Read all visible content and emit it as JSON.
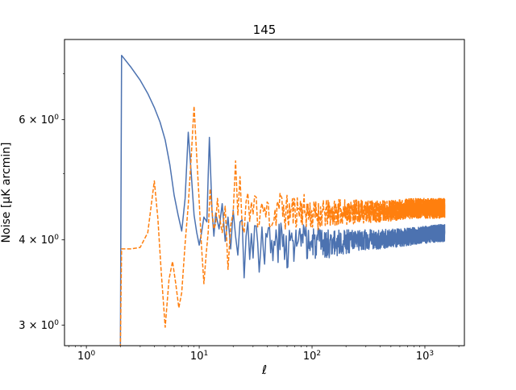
{
  "title": "145",
  "axes": {
    "xlabel": "ℓ",
    "ylabel": "Noise [μK arcmin]"
  },
  "chart_data": {
    "type": "line",
    "x_scale": "log",
    "y_scale": "log",
    "x_range": [
      0.64,
      2240
    ],
    "y_range": [
      2.8,
      7.86
    ],
    "grid": false,
    "legend": "none",
    "x_ticks": {
      "major": [
        {
          "v": 1,
          "exp": "0"
        },
        {
          "v": 10,
          "exp": "1"
        },
        {
          "v": 100,
          "exp": "2"
        },
        {
          "v": 1000,
          "exp": "3"
        }
      ],
      "minor": [
        0.7,
        0.8,
        0.9,
        2,
        3,
        4,
        5,
        6,
        7,
        8,
        9,
        20,
        30,
        40,
        50,
        60,
        70,
        80,
        90,
        200,
        300,
        400,
        500,
        600,
        700,
        800,
        900,
        2000
      ]
    },
    "y_ticks": {
      "labeled": [
        {
          "v": 3,
          "coeff": "3",
          "exp": "0"
        },
        {
          "v": 4,
          "coeff": "4",
          "exp": "0"
        },
        {
          "v": 6,
          "coeff": "6",
          "exp": "0"
        }
      ],
      "minor": [
        5,
        7
      ]
    },
    "series": [
      {
        "id": "series-solid",
        "color": "#4c72b0",
        "style": "solid",
        "seed": 3,
        "anchors": [
          [
            2,
            2.78
          ],
          [
            2.05,
            7.45
          ],
          [
            2.5,
            7.15
          ],
          [
            3,
            6.85
          ],
          [
            3.5,
            6.55
          ],
          [
            4,
            6.25
          ],
          [
            4.5,
            5.95
          ],
          [
            5,
            5.6
          ],
          [
            5.5,
            5.15
          ],
          [
            6,
            4.65
          ],
          [
            6.5,
            4.35
          ],
          [
            7,
            4.12
          ],
          [
            7.5,
            4.6
          ],
          [
            8,
            5.75
          ],
          [
            8.5,
            5.0
          ],
          [
            9,
            4.35
          ],
          [
            9.5,
            4.1
          ],
          [
            10,
            3.93
          ],
          [
            10.5,
            4.1
          ],
          [
            11,
            4.32
          ],
          [
            11.7,
            4.25
          ],
          [
            12.3,
            5.65
          ],
          [
            13,
            4.4
          ],
          [
            13.5,
            4.05
          ],
          [
            14,
            4.38
          ],
          [
            15,
            4.15
          ],
          [
            16,
            4.52
          ],
          [
            17,
            3.98
          ],
          [
            18,
            4.32
          ],
          [
            19,
            3.88
          ],
          [
            20,
            4.42
          ],
          [
            21,
            4.05
          ],
          [
            22,
            3.8
          ],
          [
            23,
            4.25
          ],
          [
            24,
            4.28
          ],
          [
            25,
            3.52
          ],
          [
            26,
            4.05
          ],
          [
            27,
            4.22
          ],
          [
            28,
            3.85
          ],
          [
            29,
            4.1
          ],
          [
            30,
            3.95
          ],
          [
            32,
            4.2
          ],
          [
            34,
            3.75
          ],
          [
            36,
            4.15
          ],
          [
            38,
            3.9
          ],
          [
            40,
            4.05
          ],
          [
            45,
            3.85
          ],
          [
            50,
            4.0
          ],
          [
            60,
            3.92
          ],
          [
            80,
            3.98
          ],
          [
            100,
            3.95
          ],
          [
            150,
            3.95
          ],
          [
            200,
            3.98
          ],
          [
            300,
            4.0
          ],
          [
            500,
            4.02
          ],
          [
            800,
            4.05
          ],
          [
            1100,
            4.08
          ],
          [
            1500,
            4.1
          ]
        ],
        "noise_amp": [
          [
            2,
            0
          ],
          [
            26,
            0
          ],
          [
            30,
            0.22
          ],
          [
            50,
            0.3
          ],
          [
            80,
            0.25
          ],
          [
            150,
            0.18
          ],
          [
            300,
            0.14
          ],
          [
            700,
            0.12
          ],
          [
            1500,
            0.12
          ]
        ]
      },
      {
        "id": "series-dashed",
        "color": "#ff7f0e",
        "style": "dashed",
        "seed": 11,
        "anchors": [
          [
            2,
            2.78
          ],
          [
            2.05,
            3.88
          ],
          [
            2.5,
            3.88
          ],
          [
            3,
            3.9
          ],
          [
            3.5,
            4.1
          ],
          [
            4,
            4.88
          ],
          [
            4.3,
            4.3
          ],
          [
            4.6,
            3.6
          ],
          [
            5,
            2.98
          ],
          [
            5.4,
            3.5
          ],
          [
            5.8,
            3.72
          ],
          [
            6.2,
            3.45
          ],
          [
            6.6,
            3.18
          ],
          [
            7,
            3.35
          ],
          [
            7.5,
            3.95
          ],
          [
            8,
            4.5
          ],
          [
            8.5,
            5.3
          ],
          [
            9,
            6.28
          ],
          [
            9.5,
            5.3
          ],
          [
            10,
            4.55
          ],
          [
            10.5,
            3.9
          ],
          [
            11,
            3.45
          ],
          [
            11.5,
            3.8
          ],
          [
            12,
            4.1
          ],
          [
            12.5,
            4.75
          ],
          [
            13,
            4.4
          ],
          [
            13.5,
            4.15
          ],
          [
            14,
            4.22
          ],
          [
            14.5,
            4.6
          ],
          [
            15,
            4.35
          ],
          [
            16,
            4.1
          ],
          [
            17,
            4.48
          ],
          [
            18,
            3.62
          ],
          [
            19,
            4.2
          ],
          [
            20,
            4.38
          ],
          [
            21,
            5.22
          ],
          [
            22,
            4.35
          ],
          [
            23,
            4.95
          ],
          [
            24,
            4.2
          ],
          [
            25,
            4.1
          ],
          [
            26,
            4.55
          ],
          [
            27,
            4.68
          ],
          [
            28,
            4.25
          ],
          [
            29,
            4.5
          ],
          [
            30,
            4.32
          ],
          [
            32,
            4.6
          ],
          [
            34,
            4.2
          ],
          [
            36,
            4.55
          ],
          [
            38,
            4.28
          ],
          [
            40,
            4.45
          ],
          [
            45,
            4.3
          ],
          [
            50,
            4.5
          ],
          [
            60,
            4.38
          ],
          [
            80,
            4.45
          ],
          [
            100,
            4.35
          ],
          [
            150,
            4.38
          ],
          [
            200,
            4.4
          ],
          [
            300,
            4.4
          ],
          [
            500,
            4.42
          ],
          [
            800,
            4.45
          ],
          [
            1100,
            4.45
          ],
          [
            1500,
            4.45
          ]
        ],
        "noise_amp": [
          [
            2,
            0
          ],
          [
            26,
            0
          ],
          [
            30,
            0.25
          ],
          [
            50,
            0.3
          ],
          [
            80,
            0.25
          ],
          [
            150,
            0.2
          ],
          [
            300,
            0.17
          ],
          [
            700,
            0.15
          ],
          [
            1500,
            0.15
          ]
        ]
      }
    ]
  }
}
